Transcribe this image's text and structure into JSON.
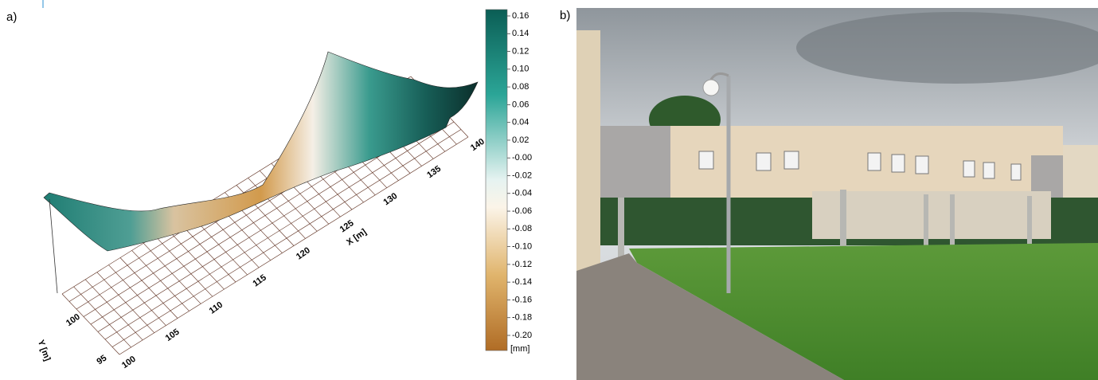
{
  "panel_a": {
    "label": "a)",
    "colorbar": {
      "ticks": [
        "0.16",
        "0.14",
        "0.12",
        "0.10",
        "0.08",
        "0.06",
        "0.04",
        "0.02",
        "-0.00",
        "-0.02",
        "-0.04",
        "-0.06",
        "-0.08",
        "-0.10",
        "-0.12",
        "-0.14",
        "-0.16",
        "-0.18",
        "-0.20"
      ],
      "unit": "[mm]"
    },
    "x_axis": {
      "label": "X [m]",
      "ticks": [
        "100",
        "105",
        "110",
        "115",
        "120",
        "125",
        "130",
        "135",
        "140"
      ]
    },
    "y_axis": {
      "label": "Y [m]",
      "ticks": [
        "95",
        "100"
      ]
    }
  },
  "panel_b": {
    "label": "b)"
  }
}
